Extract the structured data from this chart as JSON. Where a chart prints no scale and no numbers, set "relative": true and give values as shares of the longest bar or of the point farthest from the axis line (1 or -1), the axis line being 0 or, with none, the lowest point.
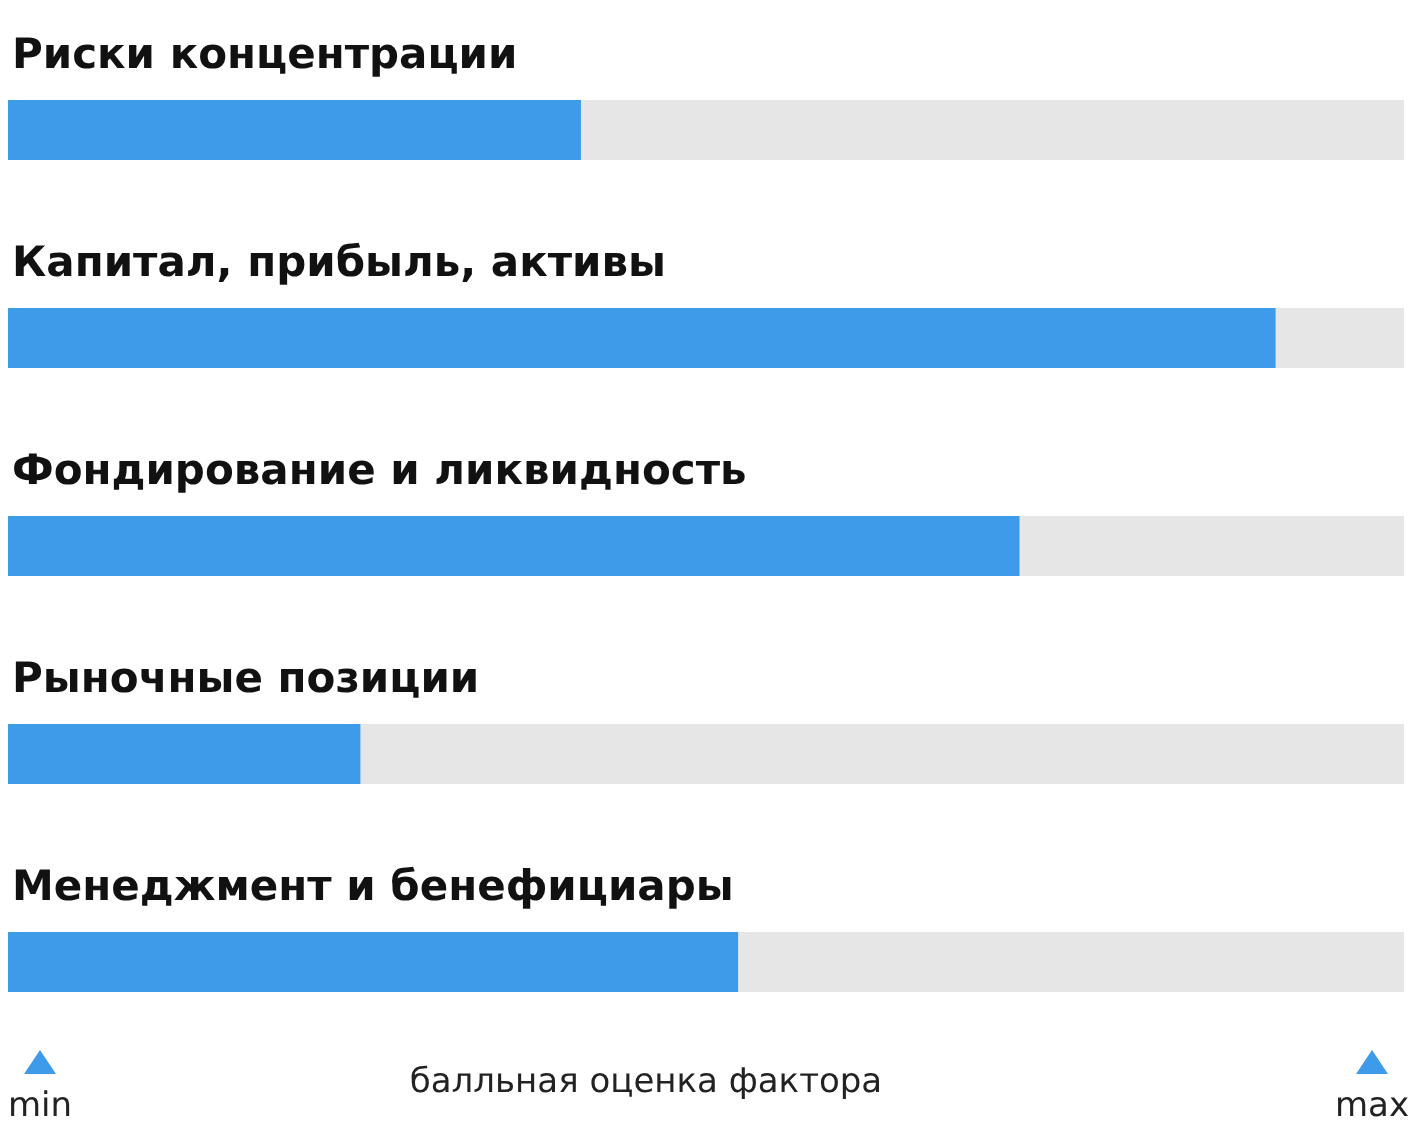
{
  "chart_data": {
    "type": "bar",
    "orientation": "horizontal",
    "relative": true,
    "categories": [
      "Риски концентрации",
      "Капитал, прибыль, активы",
      "Фондирование и ликвидность",
      "Рыночные позиции",
      "Менеджмент и бенефициары"
    ],
    "values": [
      0.452,
      1,
      0.798,
      0.278,
      0.576
    ],
    "color": "#3d9be9",
    "xlabel": "балльная оценка фактора",
    "annotations": [
      "min",
      "max"
    ]
  }
}
